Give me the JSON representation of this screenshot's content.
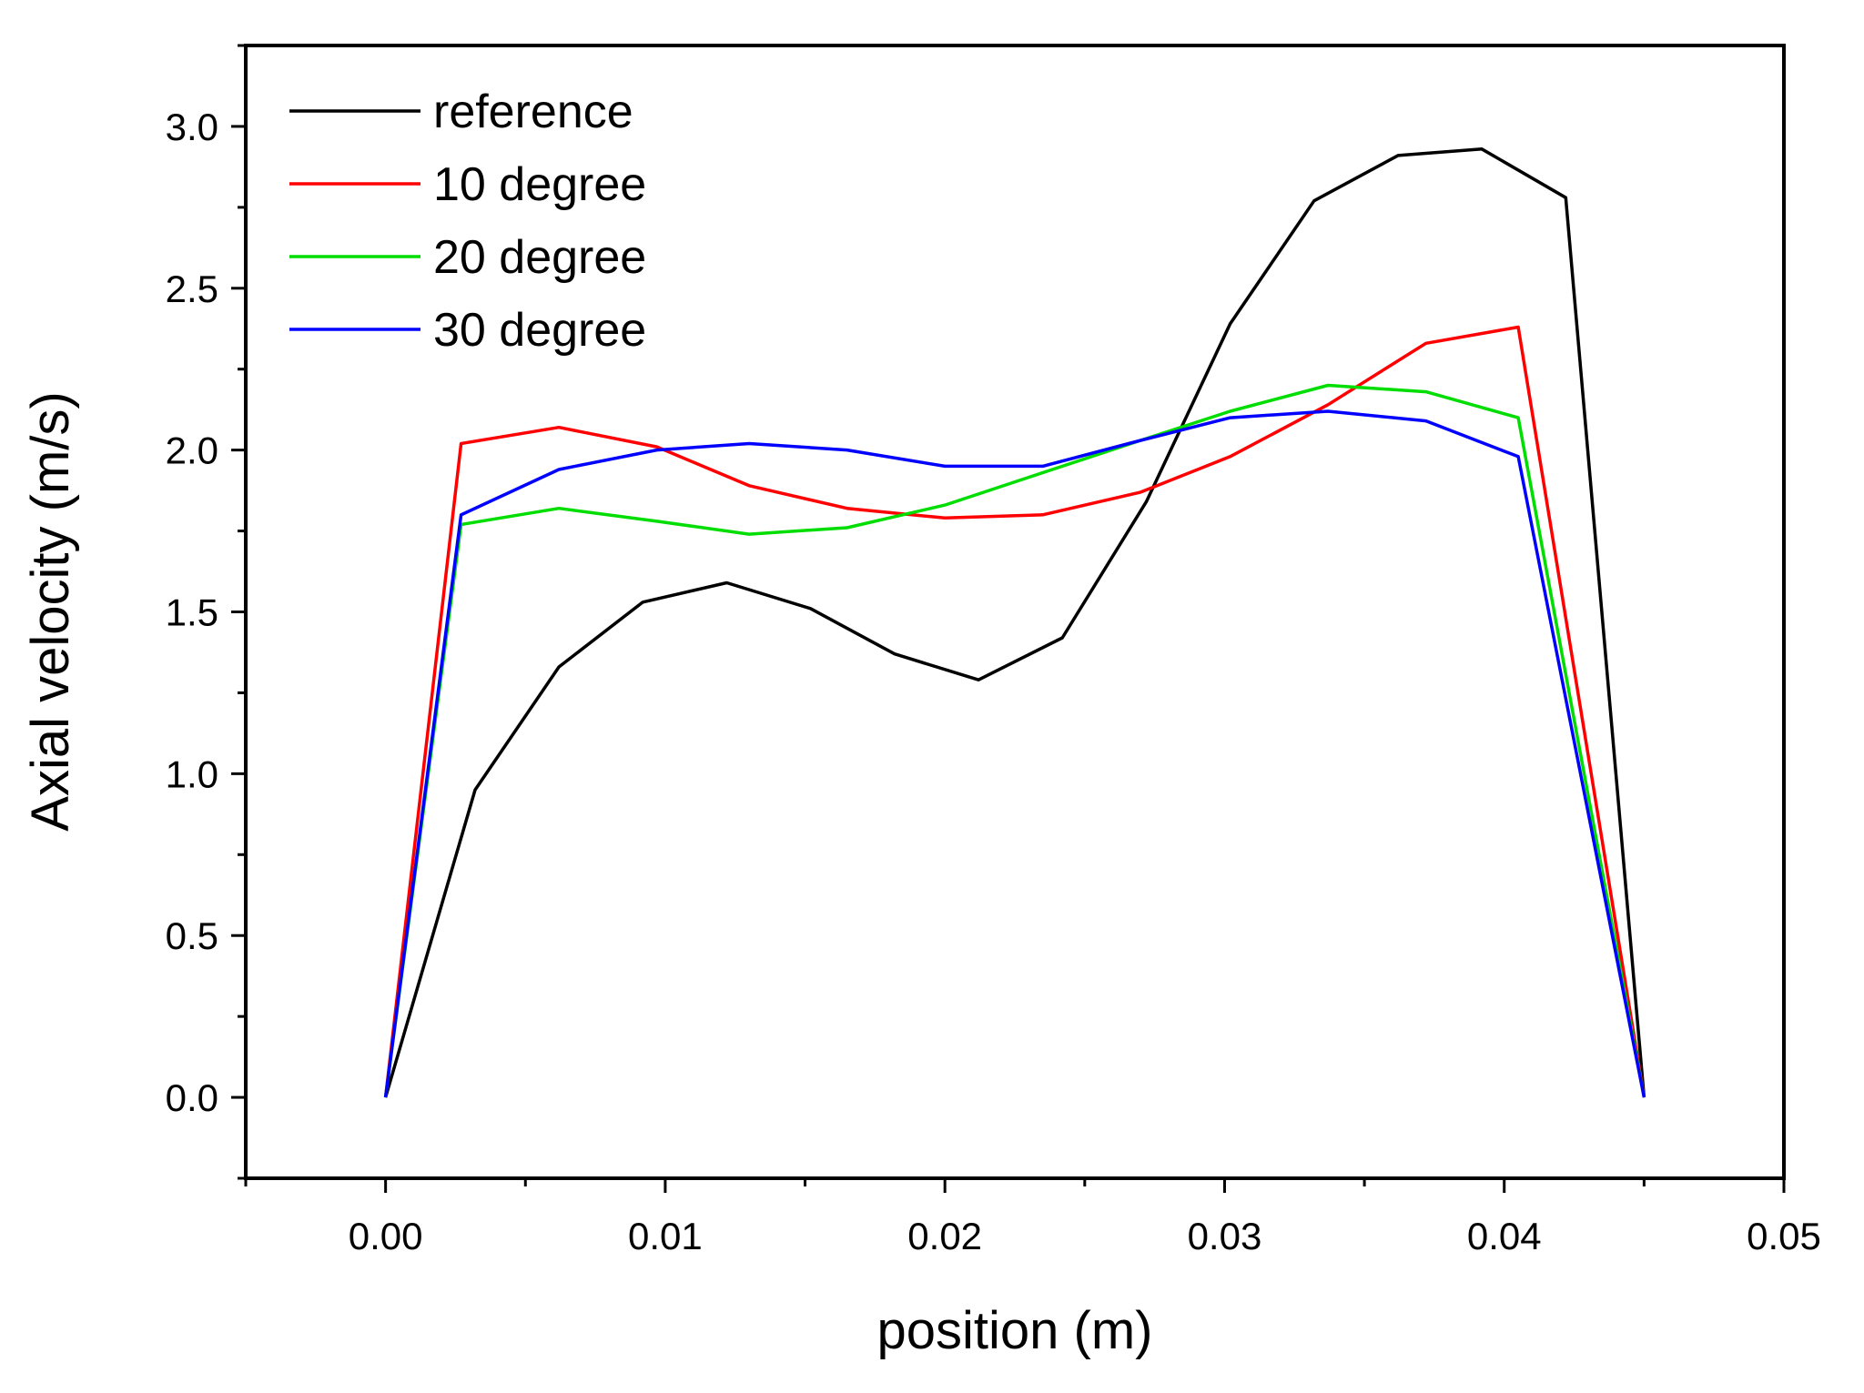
{
  "chart_data": {
    "type": "line",
    "title": "",
    "xlabel": "position (m)",
    "ylabel": "Axial velocity (m/s)",
    "xlim": [
      -0.005,
      0.05
    ],
    "ylim": [
      -0.25,
      3.25
    ],
    "xticks": [
      0.0,
      0.01,
      0.02,
      0.03,
      0.04,
      0.05
    ],
    "xtick_labels": [
      "0.00",
      "0.01",
      "0.02",
      "0.03",
      "0.04",
      "0.05"
    ],
    "yticks": [
      0.0,
      0.5,
      1.0,
      1.5,
      2.0,
      2.5,
      3.0
    ],
    "ytick_labels": [
      "0.0",
      "0.5",
      "1.0",
      "1.5",
      "2.0",
      "2.5",
      "3.0"
    ],
    "grid": false,
    "legend_position": "top-left",
    "series": [
      {
        "name": "reference",
        "color": "#000000",
        "x": [
          0.0,
          0.0032,
          0.0062,
          0.0092,
          0.0122,
          0.0152,
          0.0182,
          0.0212,
          0.0242,
          0.0272,
          0.0302,
          0.0332,
          0.0362,
          0.0392,
          0.0422,
          0.045
        ],
        "y": [
          0.0,
          0.95,
          1.33,
          1.53,
          1.59,
          1.51,
          1.37,
          1.29,
          1.42,
          1.84,
          2.39,
          2.77,
          2.91,
          2.93,
          2.78,
          0.0
        ]
      },
      {
        "name": "10 degree",
        "color": "#ff0000",
        "x": [
          0.0,
          0.0027,
          0.0062,
          0.0097,
          0.013,
          0.0165,
          0.02,
          0.0235,
          0.027,
          0.0302,
          0.0337,
          0.0372,
          0.0405,
          0.045
        ],
        "y": [
          0.0,
          2.02,
          2.07,
          2.01,
          1.89,
          1.82,
          1.79,
          1.8,
          1.87,
          1.98,
          2.14,
          2.33,
          2.38,
          0.0
        ]
      },
      {
        "name": "20 degree",
        "color": "#00dd00",
        "x": [
          0.0,
          0.0027,
          0.0062,
          0.0097,
          0.013,
          0.0165,
          0.02,
          0.0235,
          0.027,
          0.0302,
          0.0337,
          0.0372,
          0.0405,
          0.045
        ],
        "y": [
          0.0,
          1.77,
          1.82,
          1.78,
          1.74,
          1.76,
          1.83,
          1.93,
          2.03,
          2.12,
          2.2,
          2.18,
          2.1,
          0.0
        ]
      },
      {
        "name": "30 degree",
        "color": "#0000ff",
        "x": [
          0.0,
          0.0027,
          0.0062,
          0.0097,
          0.013,
          0.0165,
          0.02,
          0.0235,
          0.027,
          0.0302,
          0.0337,
          0.0372,
          0.0405,
          0.045
        ],
        "y": [
          0.0,
          1.8,
          1.94,
          2.0,
          2.02,
          2.0,
          1.95,
          1.95,
          2.03,
          2.1,
          2.12,
          2.09,
          1.98,
          0.0
        ]
      }
    ]
  }
}
